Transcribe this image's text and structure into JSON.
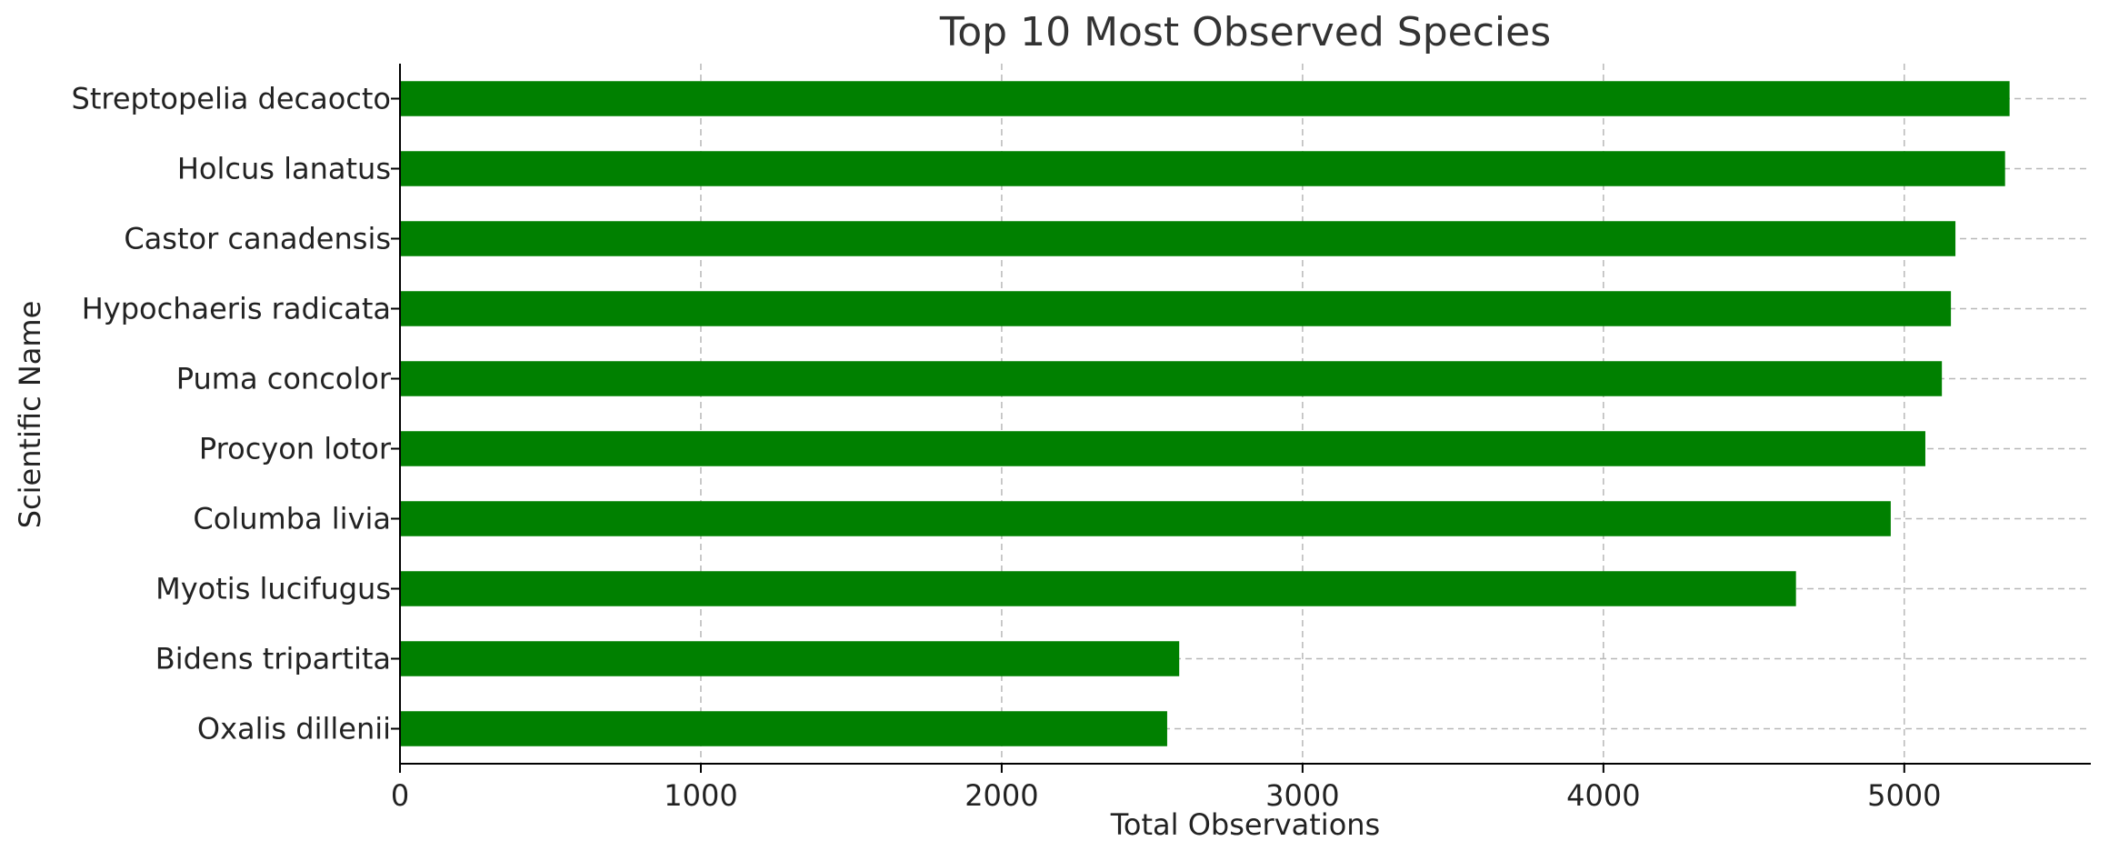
{
  "chart_data": {
    "type": "bar",
    "orientation": "horizontal",
    "title": "Top 10 Most Observed Species",
    "xlabel": "Total Observations",
    "ylabel": "Scientific Name",
    "categories": [
      "Streptopelia decaocto",
      "Holcus lanatus",
      "Castor canadensis",
      "Hypochaeris radicata",
      "Puma concolor",
      "Procyon lotor",
      "Columba livia",
      "Myotis lucifugus",
      "Bidens tripartita",
      "Oxalis dillenii"
    ],
    "values": [
      5350,
      5335,
      5170,
      5155,
      5125,
      5070,
      4955,
      4640,
      2590,
      2550
    ],
    "xlim": [
      0,
      5620
    ],
    "xticks": [
      0,
      1000,
      2000,
      3000,
      4000,
      5000
    ],
    "grid": true,
    "bar_color": "#008000",
    "grid_color": "#b8b8b8"
  }
}
